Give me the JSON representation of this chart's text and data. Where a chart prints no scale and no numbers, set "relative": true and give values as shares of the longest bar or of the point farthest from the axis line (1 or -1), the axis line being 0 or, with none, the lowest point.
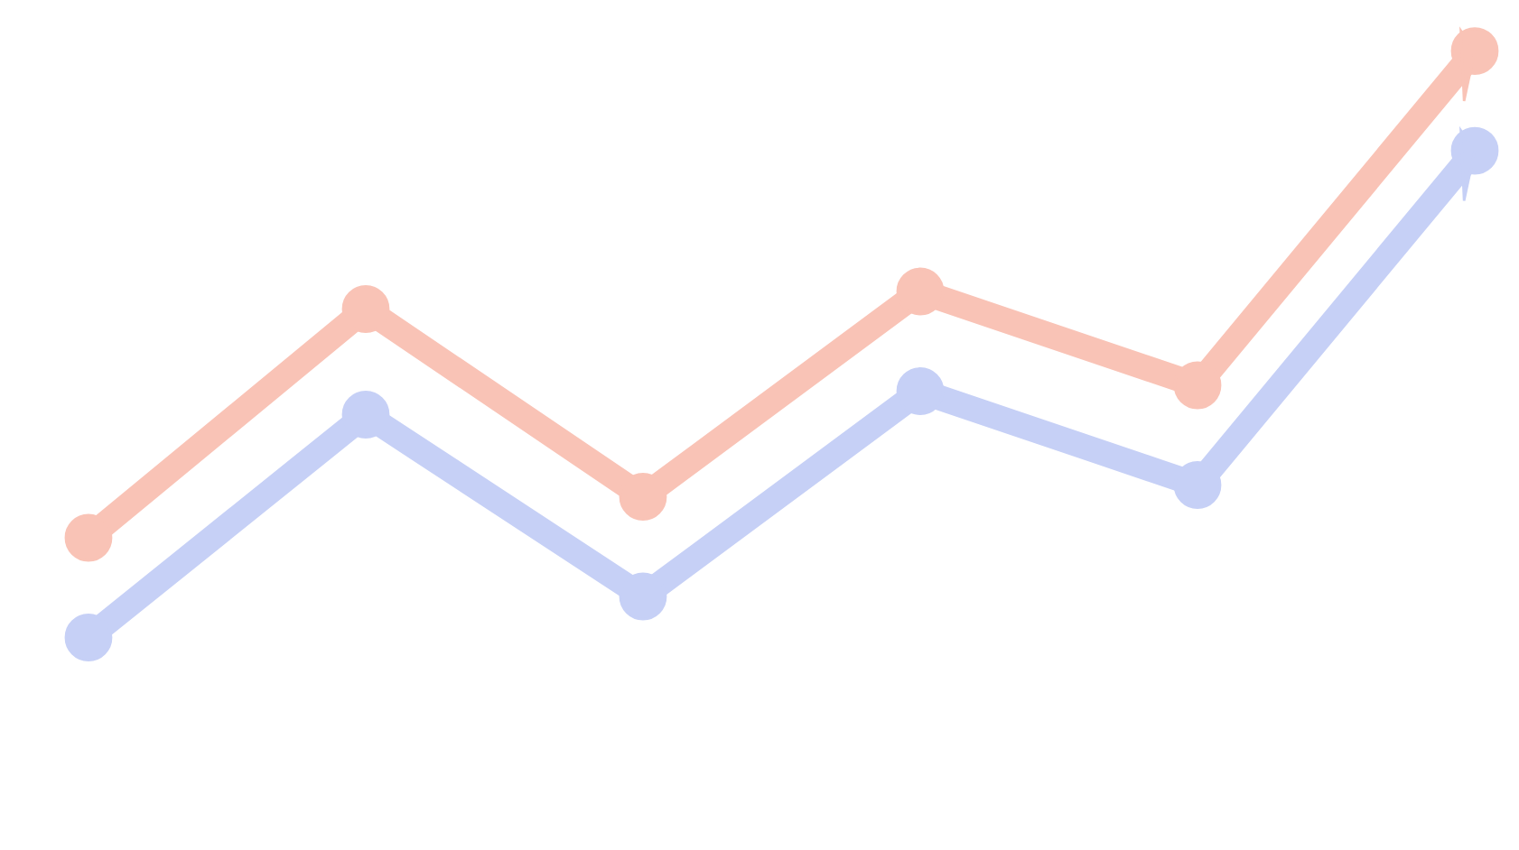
{
  "chart_data": {
    "type": "line",
    "relative": true,
    "categories": [
      null,
      null,
      null,
      null,
      null,
      null
    ],
    "series": [
      {
        "color": "#f9c3b6",
        "values": [
          0.17,
          0.56,
          0.24,
          0.59,
          0.43,
          1.0
        ]
      },
      {
        "color": "#c6d0f6",
        "values": [
          0.0,
          0.38,
          0.07,
          0.42,
          0.26,
          0.83
        ]
      }
    ],
    "marker": "circle",
    "line_style": "solid",
    "legend": false
  }
}
